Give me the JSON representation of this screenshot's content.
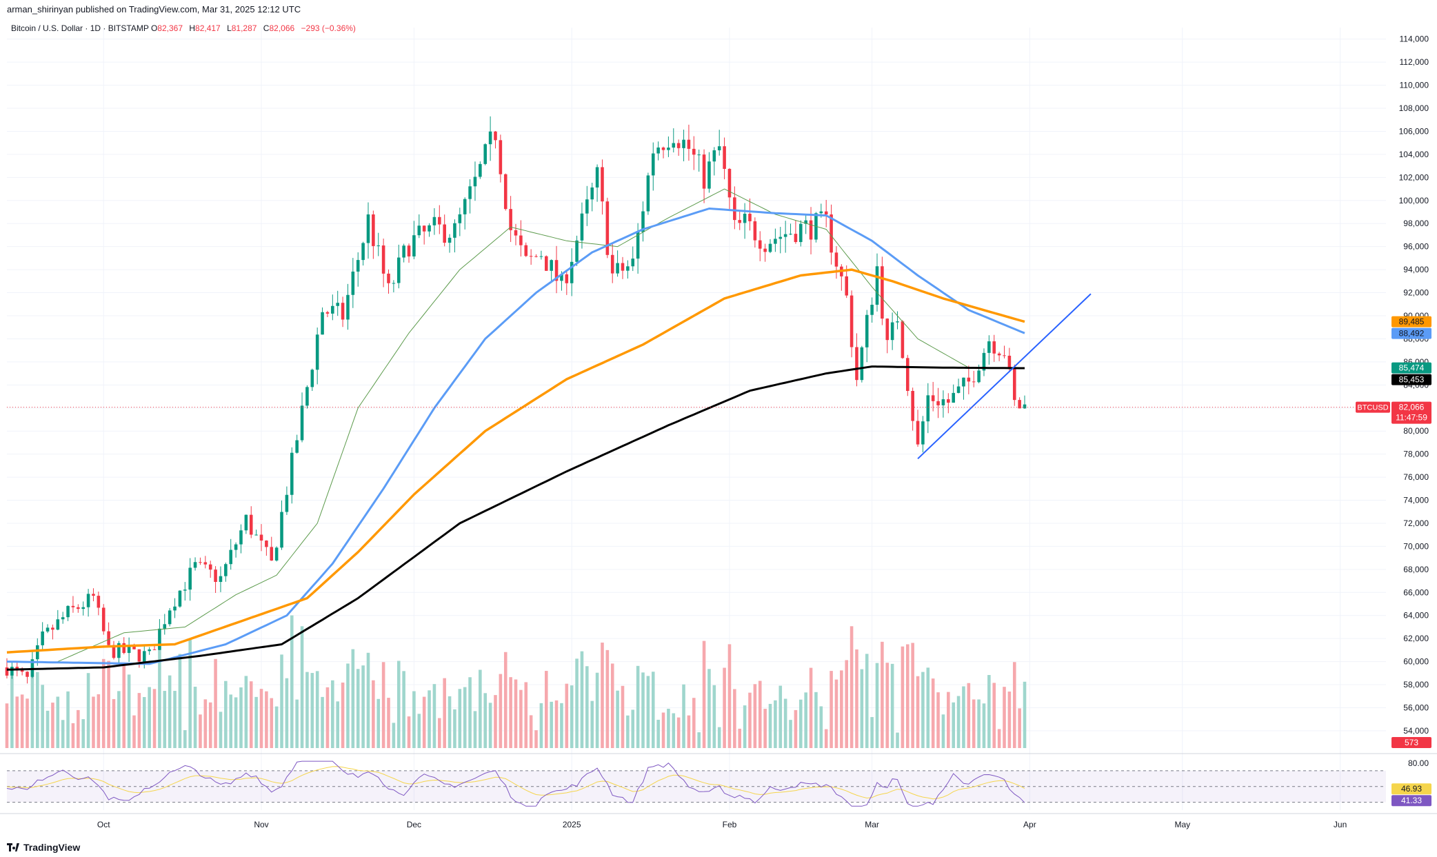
{
  "header": {
    "published": "arman_shirinyan published on TradingView.com, Mar 31, 2025 12:12 UTC",
    "symbol": "Bitcoin / U.S. Dollar · 1D · BITSTAMP",
    "o_label": "O",
    "o_value": "82,367",
    "h_label": "H",
    "h_value": "82,417",
    "l_label": "L",
    "l_value": "81,287",
    "c_label": "C",
    "c_value": "82,066",
    "change": "−293 (−0.36%)"
  },
  "footer": {
    "brand": "TradingView"
  },
  "colors": {
    "up": "#089981",
    "down": "#f23645",
    "vol_up": "#9fd6cd",
    "vol_down": "#f6a8ad",
    "sma20": "#5b9a4b",
    "sma50": "#5b9cf6",
    "sma100": "#ff9800",
    "sma200": "#000000",
    "trend": "#2962ff",
    "rsi": "#7e57c2",
    "rsi_ma": "#f5d54c"
  },
  "chart_data": {
    "type": "candlestick",
    "title": "Bitcoin / U.S. Dollar · 1D · BITSTAMP",
    "y_ticks": [
      "54,000",
      "56,000",
      "58,000",
      "60,000",
      "62,000",
      "64,000",
      "66,000",
      "68,000",
      "70,000",
      "72,000",
      "74,000",
      "76,000",
      "78,000",
      "80,000",
      "82,000",
      "84,000",
      "86,000",
      "88,000",
      "90,000",
      "92,000",
      "94,000",
      "96,000",
      "98,000",
      "100,000",
      "102,000",
      "104,000",
      "106,000",
      "108,000",
      "110,000",
      "112,000",
      "114,000"
    ],
    "y_tick_values": [
      54000,
      56000,
      58000,
      60000,
      62000,
      64000,
      66000,
      68000,
      70000,
      72000,
      74000,
      76000,
      78000,
      80000,
      82000,
      84000,
      86000,
      88000,
      90000,
      92000,
      94000,
      96000,
      98000,
      100000,
      102000,
      104000,
      106000,
      108000,
      110000,
      112000,
      114000
    ],
    "ylim": [
      52500,
      115000
    ],
    "x_labels": [
      {
        "label": "Oct",
        "date": "2024-10-01"
      },
      {
        "label": "Nov",
        "date": "2024-11-01"
      },
      {
        "label": "Dec",
        "date": "2024-12-01"
      },
      {
        "label": "2025",
        "date": "2025-01-01"
      },
      {
        "label": "Feb",
        "date": "2025-02-01"
      },
      {
        "label": "Mar",
        "date": "2025-03-01"
      },
      {
        "label": "Apr",
        "date": "2025-04-01"
      },
      {
        "label": "May",
        "date": "2025-05-01"
      },
      {
        "label": "Jun",
        "date": "2025-06-01"
      }
    ],
    "xlim": [
      "2024-09-12",
      "2025-06-10"
    ],
    "price_anchors": [
      [
        "2024-09-12",
        59500
      ],
      [
        "2024-09-16",
        58400
      ],
      [
        "2024-09-19",
        62000
      ],
      [
        "2024-09-24",
        64200
      ],
      [
        "2024-09-29",
        65500
      ],
      [
        "2024-10-02",
        61000
      ],
      [
        "2024-10-10",
        60500
      ],
      [
        "2024-10-14",
        64800
      ],
      [
        "2024-10-19",
        68200
      ],
      [
        "2024-10-24",
        67200
      ],
      [
        "2024-10-29",
        72300
      ],
      [
        "2024-11-03",
        68400
      ],
      [
        "2024-11-06",
        75000
      ],
      [
        "2024-11-11",
        86000
      ],
      [
        "2024-11-13",
        90500
      ],
      [
        "2024-11-17",
        90000
      ],
      [
        "2024-11-22",
        98300
      ],
      [
        "2024-11-26",
        92000
      ],
      [
        "2024-11-30",
        96300
      ],
      [
        "2024-12-05",
        97500
      ],
      [
        "2024-12-09",
        97300
      ],
      [
        "2024-12-13",
        101500
      ],
      [
        "2024-12-17",
        106000
      ],
      [
        "2024-12-20",
        97500
      ],
      [
        "2024-12-23",
        94500
      ],
      [
        "2024-12-26",
        95500
      ],
      [
        "2024-12-30",
        92500
      ],
      [
        "2025-01-03",
        98000
      ],
      [
        "2025-01-06",
        102000
      ],
      [
        "2025-01-09",
        93500
      ],
      [
        "2025-01-13",
        94500
      ],
      [
        "2025-01-17",
        104500
      ],
      [
        "2025-01-21",
        106000
      ],
      [
        "2025-01-24",
        104500
      ],
      [
        "2025-01-27",
        102000
      ],
      [
        "2025-01-30",
        104500
      ],
      [
        "2025-02-02",
        97500
      ],
      [
        "2025-02-04",
        98000
      ],
      [
        "2025-02-08",
        96500
      ],
      [
        "2025-02-14",
        97500
      ],
      [
        "2025-02-20",
        98000
      ],
      [
        "2025-02-24",
        91500
      ],
      [
        "2025-02-26",
        84500
      ],
      [
        "2025-03-02",
        94200
      ],
      [
        "2025-03-04",
        87200
      ],
      [
        "2025-03-06",
        90000
      ],
      [
        "2025-03-10",
        78500
      ],
      [
        "2025-03-12",
        83000
      ],
      [
        "2025-03-16",
        82500
      ],
      [
        "2025-03-20",
        84200
      ],
      [
        "2025-03-24",
        88000
      ],
      [
        "2025-03-27",
        87000
      ],
      [
        "2025-03-29",
        82300
      ],
      [
        "2025-03-31",
        82066
      ]
    ],
    "sma_anchors": {
      "sma20": [
        [
          "2024-09-22",
          60000
        ],
        [
          "2024-10-05",
          62500
        ],
        [
          "2024-10-17",
          63000
        ],
        [
          "2024-10-27",
          65800
        ],
        [
          "2024-11-04",
          67500
        ],
        [
          "2024-11-12",
          72000
        ],
        [
          "2024-11-20",
          82000
        ],
        [
          "2024-11-30",
          88500
        ],
        [
          "2024-12-10",
          94000
        ],
        [
          "2024-12-20",
          97700
        ],
        [
          "2024-12-31",
          96500
        ],
        [
          "2025-01-10",
          96000
        ],
        [
          "2025-01-20",
          98500
        ],
        [
          "2025-01-31",
          101000
        ],
        [
          "2025-02-10",
          98800
        ],
        [
          "2025-02-20",
          97500
        ],
        [
          "2025-03-01",
          92500
        ],
        [
          "2025-03-10",
          88000
        ],
        [
          "2025-03-20",
          85500
        ],
        [
          "2025-03-31",
          85474
        ]
      ],
      "sma50": [
        [
          "2024-09-12",
          60000
        ],
        [
          "2024-10-10",
          59800
        ],
        [
          "2024-10-25",
          61500
        ],
        [
          "2024-11-06",
          64000
        ],
        [
          "2024-11-15",
          68500
        ],
        [
          "2024-11-25",
          75000
        ],
        [
          "2024-12-05",
          82000
        ],
        [
          "2024-12-15",
          88000
        ],
        [
          "2024-12-25",
          92000
        ],
        [
          "2025-01-05",
          95500
        ],
        [
          "2025-01-15",
          97500
        ],
        [
          "2025-01-28",
          99300
        ],
        [
          "2025-02-10",
          98900
        ],
        [
          "2025-02-20",
          98700
        ],
        [
          "2025-03-01",
          96500
        ],
        [
          "2025-03-10",
          93500
        ],
        [
          "2025-03-20",
          90500
        ],
        [
          "2025-03-31",
          88492
        ]
      ],
      "sma100": [
        [
          "2024-09-12",
          60800
        ],
        [
          "2024-10-01",
          61300
        ],
        [
          "2024-10-15",
          61500
        ],
        [
          "2024-10-28",
          63500
        ],
        [
          "2024-11-10",
          65500
        ],
        [
          "2024-11-20",
          69500
        ],
        [
          "2024-12-01",
          74500
        ],
        [
          "2024-12-15",
          80000
        ],
        [
          "2024-12-31",
          84500
        ],
        [
          "2025-01-15",
          87500
        ],
        [
          "2025-01-31",
          91500
        ],
        [
          "2025-02-15",
          93500
        ],
        [
          "2025-02-25",
          94000
        ],
        [
          "2025-03-05",
          93000
        ],
        [
          "2025-03-15",
          91500
        ],
        [
          "2025-03-31",
          89485
        ]
      ],
      "sma200": [
        [
          "2024-09-12",
          59300
        ],
        [
          "2024-10-01",
          59500
        ],
        [
          "2024-10-20",
          60500
        ],
        [
          "2024-11-05",
          61500
        ],
        [
          "2024-11-20",
          65500
        ],
        [
          "2024-12-10",
          72000
        ],
        [
          "2024-12-31",
          76500
        ],
        [
          "2025-01-20",
          80500
        ],
        [
          "2025-02-05",
          83500
        ],
        [
          "2025-02-20",
          85000
        ],
        [
          "2025-03-01",
          85600
        ],
        [
          "2025-03-15",
          85500
        ],
        [
          "2025-03-31",
          85453
        ]
      ]
    },
    "trendline": {
      "from": [
        "2025-03-10",
        77600
      ],
      "to": [
        "2025-04-13",
        91900
      ]
    },
    "price_scale_labels": [
      {
        "text": "89,485",
        "value": 89485,
        "bg": "#ff9800",
        "fg": "#131722"
      },
      {
        "text": "88,492",
        "value": 88492,
        "bg": "#5b9cf6",
        "fg": "#131722"
      },
      {
        "text": "85,474",
        "value": 85474,
        "bg": "#089981",
        "fg": "#ffffff"
      },
      {
        "text": "85,453",
        "value": 85453,
        "bg": "#000000",
        "fg": "#ffffff"
      }
    ],
    "last_price": {
      "symbol": "BTCUSD",
      "price": "82,066",
      "countdown": "11:47:59",
      "value": 82066
    },
    "volume_label": "573",
    "rsi": {
      "ticks": [
        "80.00"
      ],
      "levels": [
        70,
        50,
        30
      ],
      "value_label": "46.93",
      "ma_label": "41.33",
      "value": 46.93,
      "ma_value": 41.33,
      "ylim": [
        20,
        90
      ]
    }
  }
}
